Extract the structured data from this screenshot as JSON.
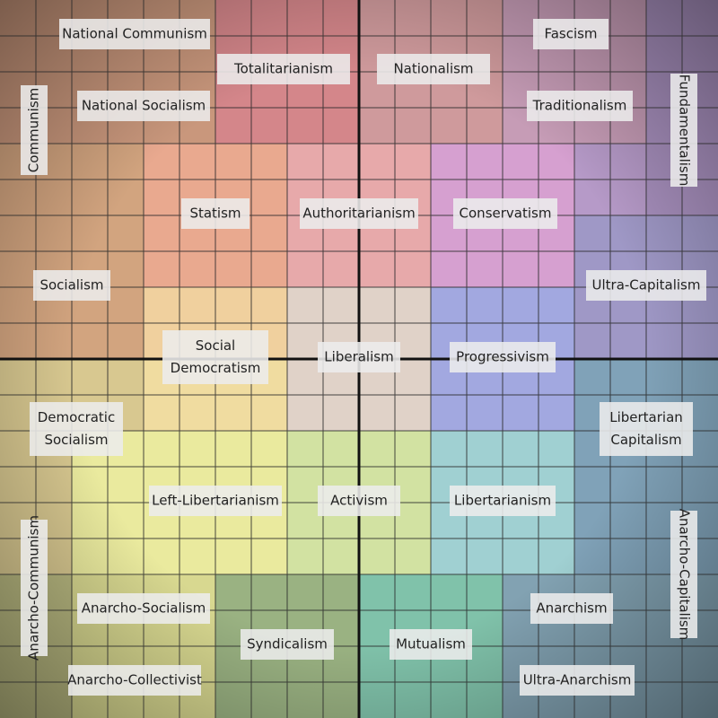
{
  "labels": [
    {
      "lines": [
        "National Communism"
      ]
    },
    {
      "lines": [
        "Totalitarianism"
      ]
    },
    {
      "lines": [
        "Nationalism"
      ]
    },
    {
      "lines": [
        "Fascism"
      ]
    },
    {
      "lines": [
        "National Socialism"
      ]
    },
    {
      "lines": [
        "Traditionalism"
      ]
    },
    {
      "lines": [
        "Communism"
      ]
    },
    {
      "lines": [
        "Fundamentalism"
      ]
    },
    {
      "lines": [
        "Statism"
      ]
    },
    {
      "lines": [
        "Authoritarianism"
      ]
    },
    {
      "lines": [
        "Conservatism"
      ]
    },
    {
      "lines": [
        "Socialism"
      ]
    },
    {
      "lines": [
        "Ultra-Capitalism"
      ]
    },
    {
      "lines": [
        "Social",
        "Democratism"
      ]
    },
    {
      "lines": [
        "Liberalism"
      ]
    },
    {
      "lines": [
        "Progressivism"
      ]
    },
    {
      "lines": [
        "Democratic",
        "Socialism"
      ]
    },
    {
      "lines": [
        "Libertarian",
        "Capitalism"
      ]
    },
    {
      "lines": [
        "Left-Libertarianism"
      ]
    },
    {
      "lines": [
        "Activism"
      ]
    },
    {
      "lines": [
        "Libertarianism"
      ]
    },
    {
      "lines": [
        "Anarcho-Communism"
      ]
    },
    {
      "lines": [
        "Anarcho-Capitalism"
      ]
    },
    {
      "lines": [
        "Anarcho-Socialism"
      ]
    },
    {
      "lines": [
        "Anarchism"
      ]
    },
    {
      "lines": [
        "Syndicalism"
      ]
    },
    {
      "lines": [
        "Mutualism"
      ]
    },
    {
      "lines": [
        "Anarcho-Collectivist"
      ]
    },
    {
      "lines": [
        "Ultra-Anarchism"
      ]
    }
  ]
}
